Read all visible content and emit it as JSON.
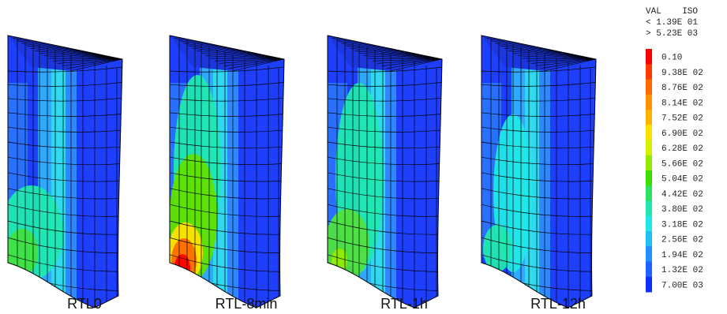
{
  "panels": [
    {
      "label": "RTL0"
    },
    {
      "label": "RTL-8min"
    },
    {
      "label": "RTL-1h"
    },
    {
      "label": "RTL-12h"
    }
  ],
  "legend": {
    "header": "VAL    ISO",
    "min": "< 1.39E 01",
    "max": "> 5.23E 03",
    "entries": [
      {
        "label": "0.10",
        "color": "#ff0000"
      },
      {
        "label": "9.38E 02",
        "color": "#ff3a00"
      },
      {
        "label": "8.76E 02",
        "color": "#ff6a00"
      },
      {
        "label": "8.14E 02",
        "color": "#ff9000"
      },
      {
        "label": "7.52E 02",
        "color": "#ffb400"
      },
      {
        "label": "6.90E 02",
        "color": "#ffe000"
      },
      {
        "label": "6.28E 02",
        "color": "#d8f000"
      },
      {
        "label": "5.66E 02",
        "color": "#90ec00"
      },
      {
        "label": "5.04E 02",
        "color": "#3ce000"
      },
      {
        "label": "4.42E 02",
        "color": "#30e060"
      },
      {
        "label": "3.80E 02",
        "color": "#20e8b0"
      },
      {
        "label": "3.18E 02",
        "color": "#20e8e8"
      },
      {
        "label": "2.56E 02",
        "color": "#20c0f0"
      },
      {
        "label": "1.94E 02",
        "color": "#2090ff"
      },
      {
        "label": "1.32E 02",
        "color": "#2060ff"
      },
      {
        "label": "7.00E 03",
        "color": "#1030ff"
      }
    ]
  }
}
